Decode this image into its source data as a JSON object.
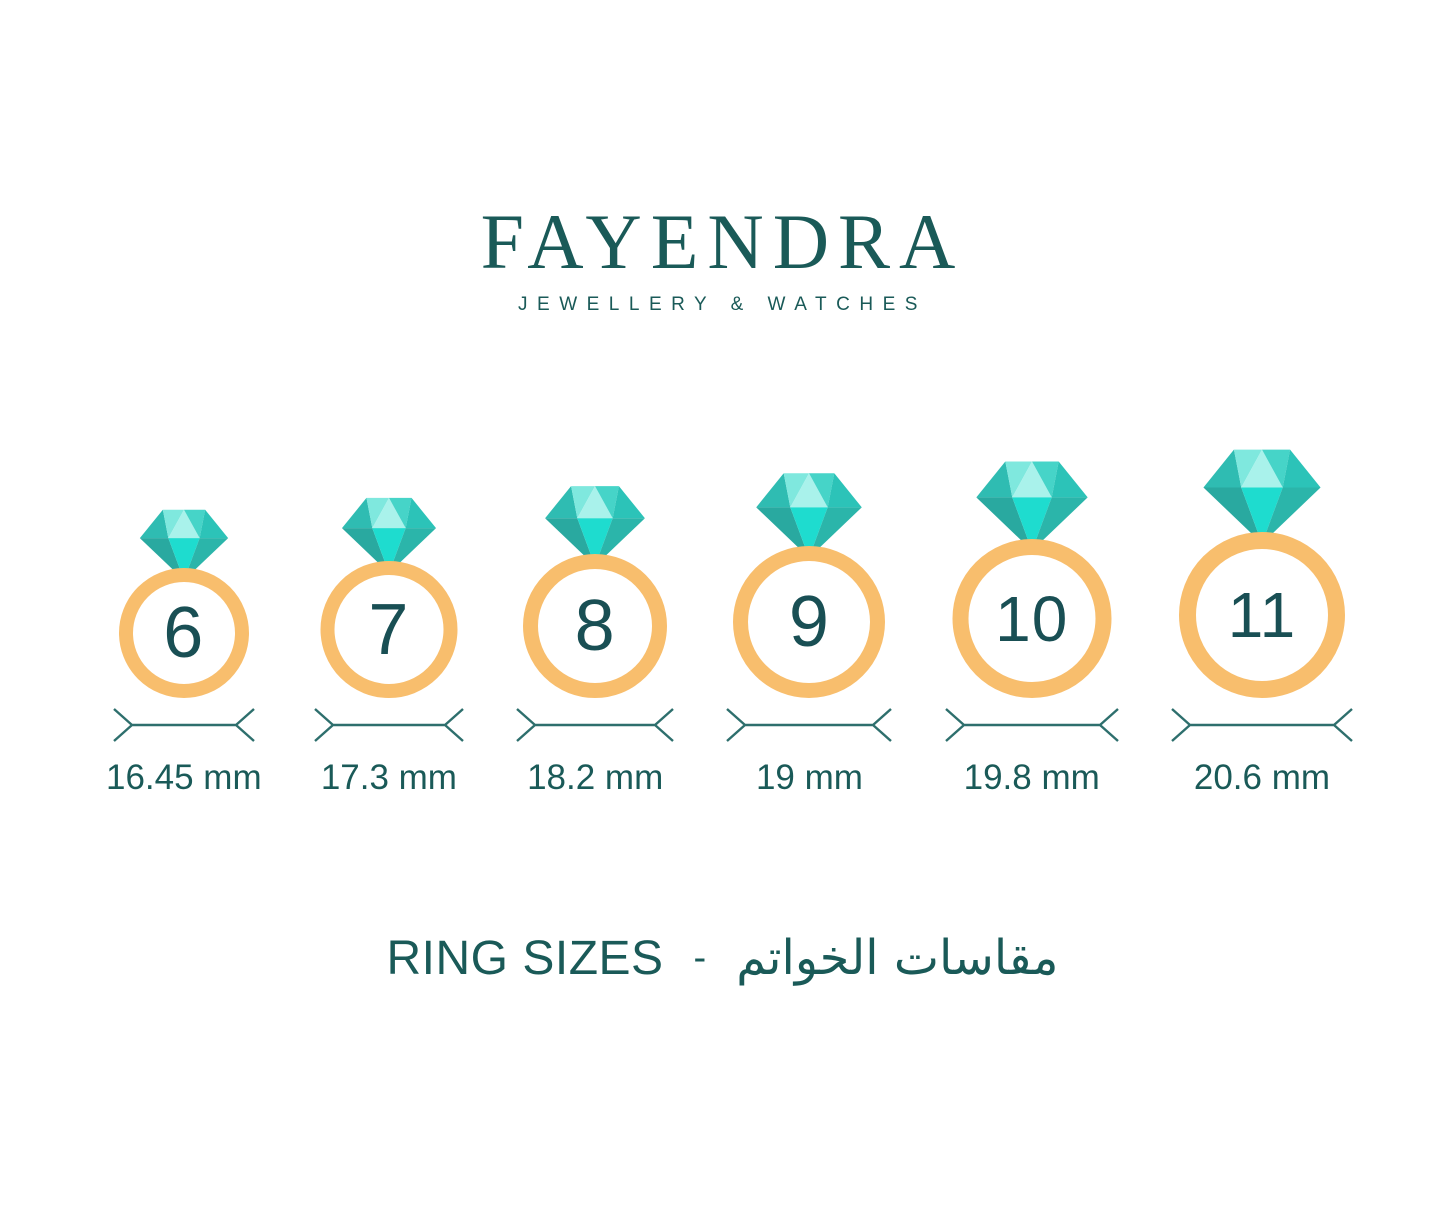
{
  "brand": {
    "name": "FAYENDRA",
    "tagline": "JEWELLERY & WATCHES"
  },
  "rings": [
    {
      "size": "6",
      "diameter": "16.45 mm"
    },
    {
      "size": "7",
      "diameter": "17.3 mm"
    },
    {
      "size": "8",
      "diameter": "18.2 mm"
    },
    {
      "size": "9",
      "diameter": "19 mm"
    },
    {
      "size": "10",
      "diameter": "19.8 mm"
    },
    {
      "size": "11",
      "diameter": "20.6 mm"
    }
  ],
  "footer": {
    "title_en": "RING SIZES",
    "separator": "-",
    "title_ar": "مقاسات الخواتم"
  },
  "colors": {
    "teal_text": "#1A5A58",
    "number_teal": "#194F54",
    "band_orange": "#F8BE6D",
    "measure_line": "#2E6F6D",
    "diamond_bright": "#1EDCCF",
    "diamond_lightest": "#A9F2EB",
    "diamond_light": "#7FE8DE",
    "diamond_medium": "#46D4C8",
    "diamond_dark_left": "#2FBCB2",
    "diamond_dark_right": "#2CC3B8",
    "diamond_pavilion_left": "#29A9A0",
    "diamond_pavilion_right": "#2BB5AA"
  }
}
